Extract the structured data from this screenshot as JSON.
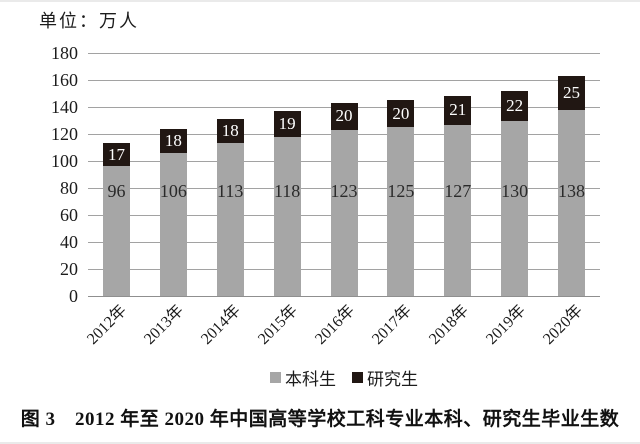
{
  "unit_label": "单位：万人",
  "chart_data": {
    "type": "bar",
    "stacked": true,
    "categories": [
      "2012年",
      "2013年",
      "2014年",
      "2015年",
      "2016年",
      "2017年",
      "2018年",
      "2019年",
      "2020年"
    ],
    "series": [
      {
        "name": "本科生",
        "color": "#a6a6a6",
        "label_color": "#2a2a2a",
        "values": [
          96,
          106,
          113,
          118,
          123,
          125,
          127,
          130,
          138
        ]
      },
      {
        "name": "研究生",
        "color": "#211713",
        "label_color": "#ffffff",
        "values": [
          17,
          18,
          18,
          19,
          20,
          20,
          21,
          22,
          25
        ]
      }
    ],
    "ylabel": "单位：万人",
    "ylim": [
      0,
      180
    ],
    "ytick_interval": 20,
    "yticks": [
      0,
      20,
      40,
      60,
      80,
      100,
      120,
      140,
      160,
      180
    ],
    "grid": true,
    "legend_position": "bottom"
  },
  "caption": "图 3　2012 年至 2020 年中国高等学校工科专业本科、研究生毕业生数"
}
